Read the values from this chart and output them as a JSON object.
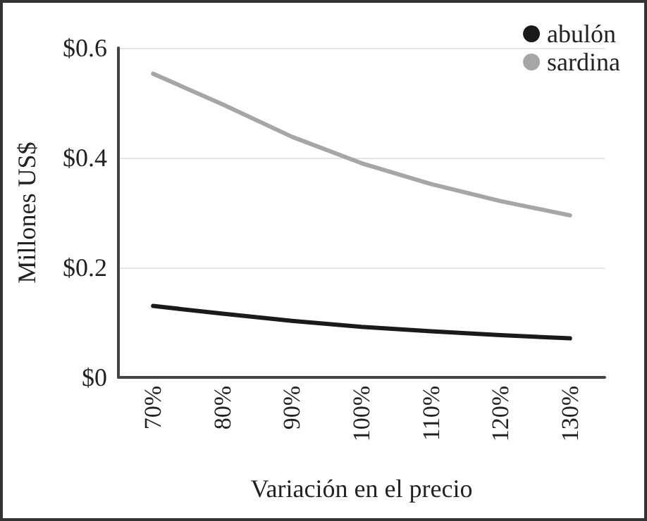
{
  "chart_data": {
    "type": "line",
    "xlabel": "Variación en el precio",
    "ylabel": "Millones US$",
    "categories": [
      "70%",
      "80%",
      "90%",
      "100%",
      "110%",
      "120%",
      "130%"
    ],
    "series": [
      {
        "name": "abulón",
        "color": "#1a1a1a",
        "values": [
          0.13,
          0.116,
          0.103,
          0.092,
          0.084,
          0.077,
          0.071
        ]
      },
      {
        "name": "sardina",
        "color": "#a6a6a6",
        "values": [
          0.553,
          0.497,
          0.438,
          0.39,
          0.352,
          0.321,
          0.295
        ]
      }
    ],
    "ylim": [
      0,
      0.6
    ],
    "yticks": [
      {
        "value": 0,
        "label": "$0"
      },
      {
        "value": 0.2,
        "label": "$0.2"
      },
      {
        "value": 0.4,
        "label": "$0.4"
      },
      {
        "value": 0.6,
        "label": "$0.6"
      }
    ],
    "grid": "y",
    "legend": "top right",
    "marker": "none",
    "line_style": "solid"
  }
}
